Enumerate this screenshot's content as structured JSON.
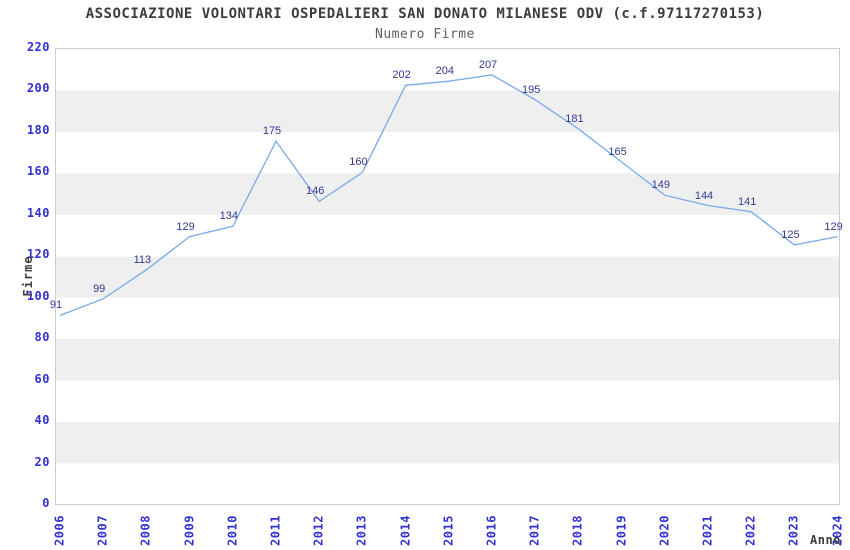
{
  "chart_data": {
    "type": "line",
    "title": "ASSOCIAZIONE VOLONTARI OSPEDALIERI SAN DONATO MILANESE ODV (c.f.97117270153)",
    "subtitle": "Numero Firme",
    "xlabel": "Anno",
    "ylabel": "Firme",
    "categories": [
      "2006",
      "2007",
      "2008",
      "2009",
      "2010",
      "2011",
      "2012",
      "2013",
      "2014",
      "2015",
      "2016",
      "2017",
      "2018",
      "2019",
      "2020",
      "2021",
      "2022",
      "2023",
      "2024"
    ],
    "values": [
      91,
      99,
      113,
      129,
      134,
      175,
      146,
      160,
      202,
      204,
      207,
      195,
      181,
      165,
      149,
      144,
      141,
      125,
      129
    ],
    "ylim": [
      0,
      220
    ],
    "ytick_step": 20,
    "grid": "alternating-horizontal-bands",
    "legend": "none",
    "data_labels": true,
    "colors": {
      "line": "#7aaae8",
      "tick_label": "#3232d2",
      "value_label": "#333991",
      "band": "#efefef",
      "plot_border": "#cccccc",
      "title": "#3c3c3c",
      "subtitle": "#5f5f5f",
      "background": "#ffffff"
    }
  }
}
